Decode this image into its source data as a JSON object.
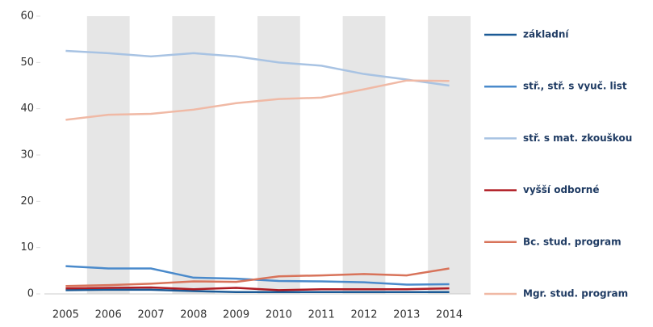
{
  "chart_data": {
    "type": "line",
    "categories": [
      "2005",
      "2006",
      "2007",
      "2008",
      "2009",
      "2010",
      "2011",
      "2012",
      "2013",
      "2014"
    ],
    "series": [
      {
        "name": "základní",
        "color": "#1b5a96",
        "values": [
          0.8,
          0.9,
          0.9,
          0.6,
          0.4,
          0.4,
          0.4,
          0.4,
          0.4,
          0.4
        ]
      },
      {
        "name": "stř., stř. s vyuč. list",
        "color": "#4a8acb",
        "values": [
          6.0,
          5.5,
          5.5,
          3.5,
          3.3,
          2.8,
          2.7,
          2.5,
          2.0,
          2.1
        ]
      },
      {
        "name": "stř. s mat. zkouškou",
        "color": "#a8c3e3",
        "values": [
          52.5,
          52.0,
          51.3,
          52.0,
          51.3,
          50.0,
          49.3,
          47.5,
          46.3,
          45.0
        ]
      },
      {
        "name": "vyšší odborné",
        "color": "#b01c23",
        "values": [
          1.2,
          1.3,
          1.4,
          1.0,
          1.3,
          0.8,
          1.0,
          1.0,
          1.0,
          1.2
        ]
      },
      {
        "name": "Bc. stud. program",
        "color": "#d8735a",
        "values": [
          1.7,
          1.9,
          2.2,
          2.7,
          2.6,
          3.8,
          4.0,
          4.3,
          4.0,
          5.5
        ]
      },
      {
        "name": "Mgr. stud. program",
        "color": "#f0b9a5",
        "values": [
          37.6,
          38.7,
          38.9,
          39.8,
          41.2,
          42.1,
          42.4,
          44.2,
          46.1,
          46.0
        ]
      }
    ],
    "ylim": [
      0,
      60
    ],
    "yticks": [
      0,
      10,
      20,
      30,
      40,
      50,
      60
    ],
    "legend": "right",
    "alternate_bands": true
  }
}
